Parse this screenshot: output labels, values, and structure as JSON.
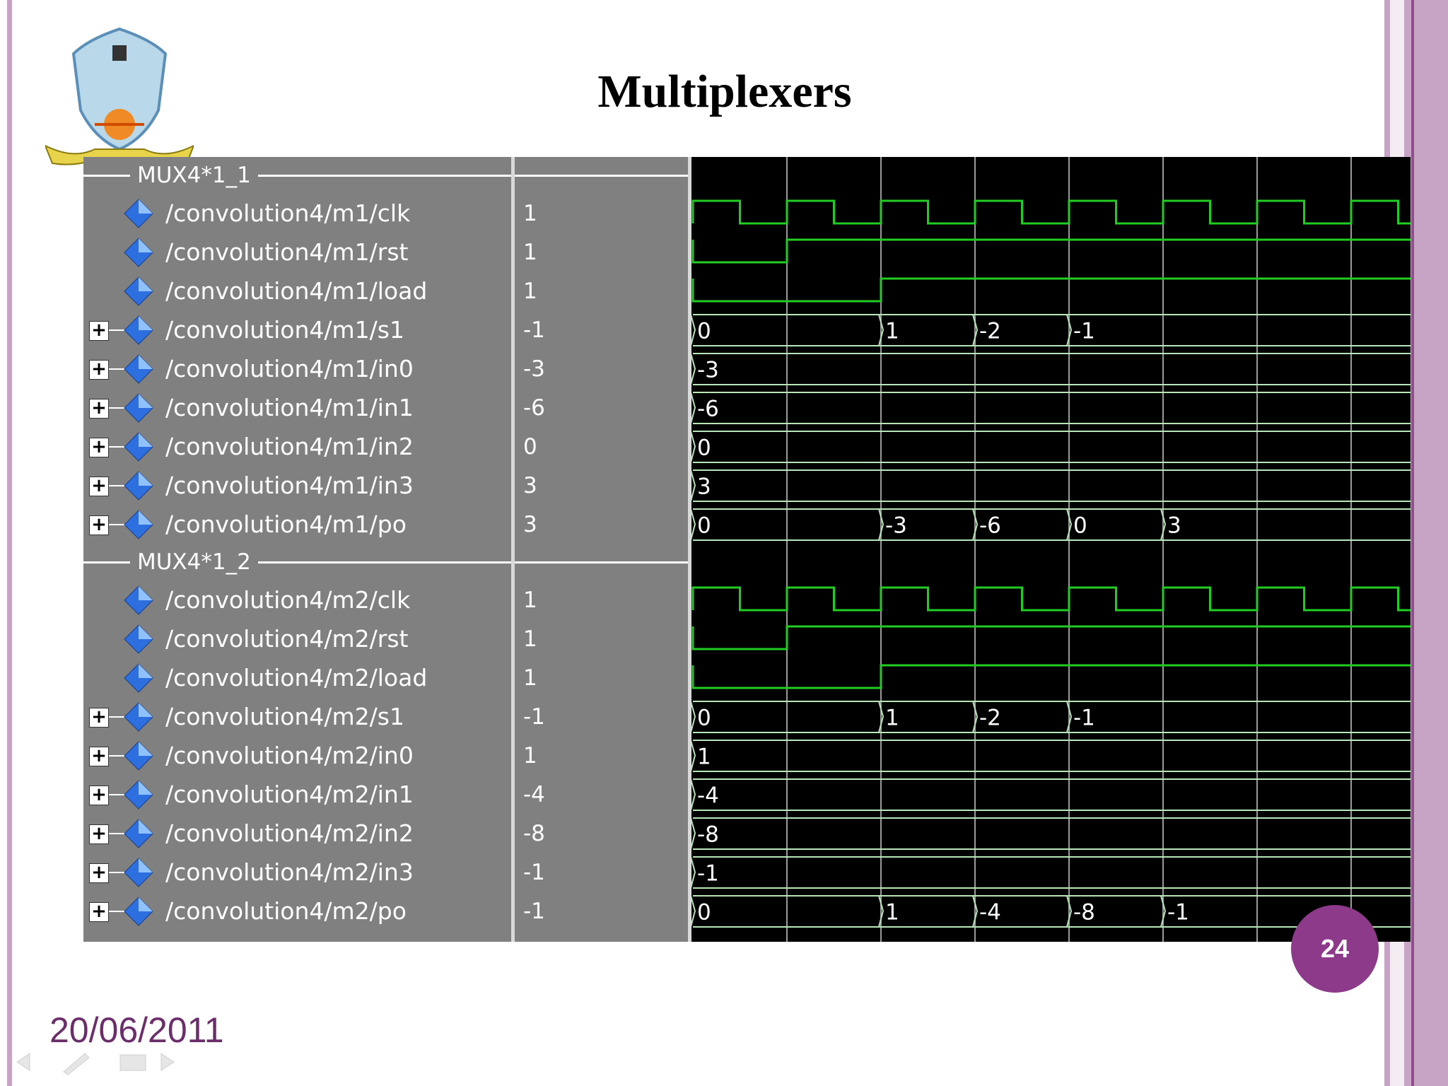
{
  "slide": {
    "title": "Multiplexers",
    "date": "20/06/2011",
    "page_number": "24"
  },
  "colors": {
    "accent": "#8e3a8a",
    "border": "#c7a3c5",
    "wave_green": "#22cc22",
    "bus_line": "#b8e6b8",
    "panel_gray": "#808080"
  },
  "groups": [
    {
      "label": "MUX4*1_1",
      "signals": [
        {
          "name": "/convolution4/m1/clk",
          "value": "1",
          "kind": "clock",
          "expandable": false
        },
        {
          "name": "/convolution4/m1/rst",
          "value": "1",
          "kind": "step",
          "step_at": 1,
          "expandable": false
        },
        {
          "name": "/convolution4/m1/load",
          "value": "1",
          "kind": "step",
          "step_at": 2,
          "expandable": false
        },
        {
          "name": "/convolution4/m1/s1",
          "value": "-1",
          "kind": "bus",
          "segments": [
            {
              "t": 0,
              "label": "0"
            },
            {
              "t": 2,
              "label": "1"
            },
            {
              "t": 3,
              "label": "-2"
            },
            {
              "t": 4,
              "label": "-1"
            }
          ],
          "expandable": true
        },
        {
          "name": "/convolution4/m1/in0",
          "value": "-3",
          "kind": "bus",
          "segments": [
            {
              "t": 0,
              "label": "-3"
            }
          ],
          "expandable": true
        },
        {
          "name": "/convolution4/m1/in1",
          "value": "-6",
          "kind": "bus",
          "segments": [
            {
              "t": 0,
              "label": "-6"
            }
          ],
          "expandable": true
        },
        {
          "name": "/convolution4/m1/in2",
          "value": "0",
          "kind": "bus",
          "segments": [
            {
              "t": 0,
              "label": "0"
            }
          ],
          "expandable": true
        },
        {
          "name": "/convolution4/m1/in3",
          "value": "3",
          "kind": "bus",
          "segments": [
            {
              "t": 0,
              "label": "3"
            }
          ],
          "expandable": true
        },
        {
          "name": "/convolution4/m1/po",
          "value": "3",
          "kind": "bus",
          "segments": [
            {
              "t": 0,
              "label": "0"
            },
            {
              "t": 2,
              "label": "-3"
            },
            {
              "t": 3,
              "label": "-6"
            },
            {
              "t": 4,
              "label": "0"
            },
            {
              "t": 5,
              "label": "3"
            }
          ],
          "expandable": true
        }
      ]
    },
    {
      "label": "MUX4*1_2",
      "signals": [
        {
          "name": "/convolution4/m2/clk",
          "value": "1",
          "kind": "clock",
          "expandable": false
        },
        {
          "name": "/convolution4/m2/rst",
          "value": "1",
          "kind": "step",
          "step_at": 1,
          "expandable": false
        },
        {
          "name": "/convolution4/m2/load",
          "value": "1",
          "kind": "step",
          "step_at": 2,
          "expandable": false
        },
        {
          "name": "/convolution4/m2/s1",
          "value": "-1",
          "kind": "bus",
          "segments": [
            {
              "t": 0,
              "label": "0"
            },
            {
              "t": 2,
              "label": "1"
            },
            {
              "t": 3,
              "label": "-2"
            },
            {
              "t": 4,
              "label": "-1"
            }
          ],
          "expandable": true
        },
        {
          "name": "/convolution4/m2/in0",
          "value": "1",
          "kind": "bus",
          "segments": [
            {
              "t": 0,
              "label": "1"
            }
          ],
          "expandable": true
        },
        {
          "name": "/convolution4/m2/in1",
          "value": "-4",
          "kind": "bus",
          "segments": [
            {
              "t": 0,
              "label": "-4"
            }
          ],
          "expandable": true
        },
        {
          "name": "/convolution4/m2/in2",
          "value": "-8",
          "kind": "bus",
          "segments": [
            {
              "t": 0,
              "label": "-8"
            }
          ],
          "expandable": true
        },
        {
          "name": "/convolution4/m2/in3",
          "value": "-1",
          "kind": "bus",
          "segments": [
            {
              "t": 0,
              "label": "-1"
            }
          ],
          "expandable": true
        },
        {
          "name": "/convolution4/m2/po",
          "value": "-1",
          "kind": "bus",
          "segments": [
            {
              "t": 0,
              "label": "0"
            },
            {
              "t": 2,
              "label": "1"
            },
            {
              "t": 3,
              "label": "-4"
            },
            {
              "t": 4,
              "label": "-8"
            },
            {
              "t": 5,
              "label": "-1"
            }
          ],
          "expandable": true
        }
      ]
    }
  ]
}
